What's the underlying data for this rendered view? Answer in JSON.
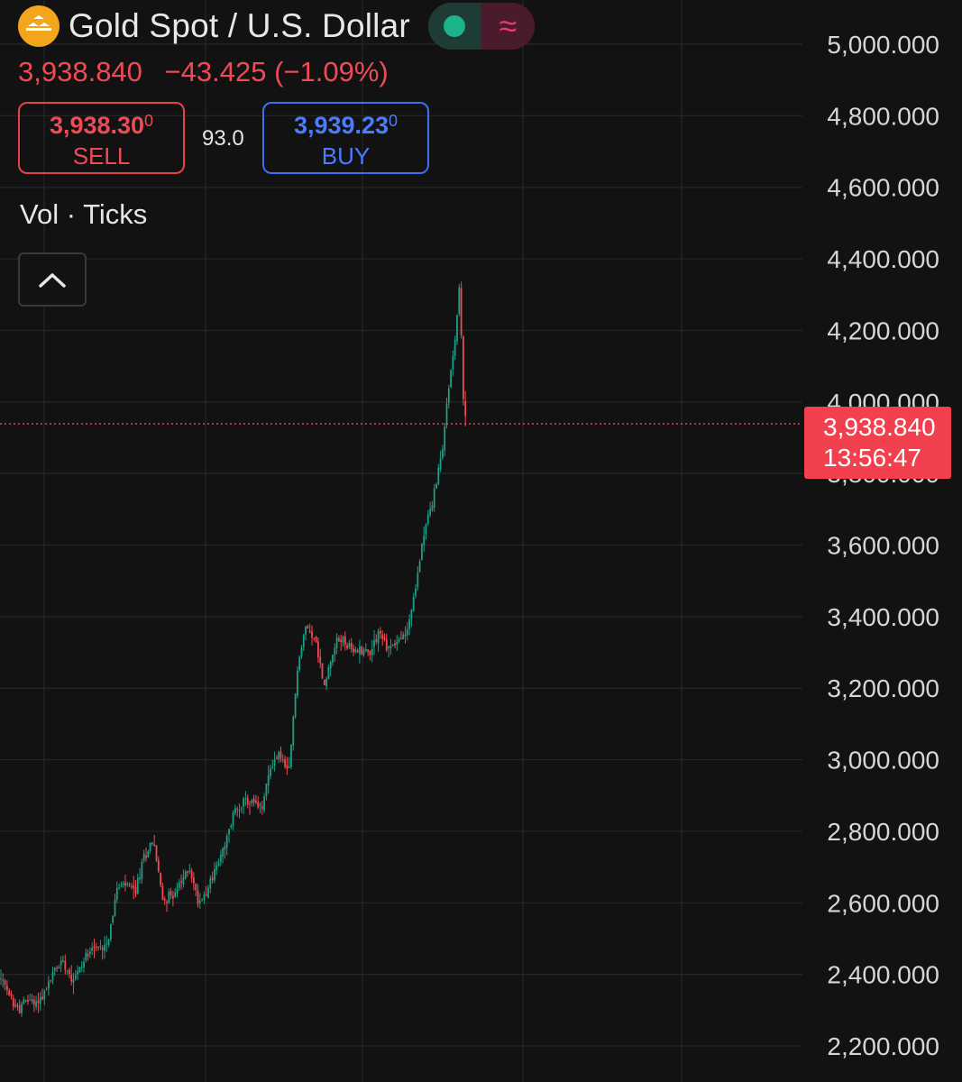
{
  "header": {
    "symbol": "Gold Spot / U.S. Dollar",
    "logo_icon": "gold-bars-icon",
    "toggle_left_icon": "dot-icon",
    "toggle_right_icon": "approx-wave-icon",
    "toggle_right_glyph": "≈"
  },
  "quote": {
    "last": "3,938.840",
    "change": "−43.425",
    "change_pct": "(−1.09%)"
  },
  "trade": {
    "sell_price_main": "3,938.30",
    "sell_price_sup": "0",
    "sell_label": "SELL",
    "spread": "93.0",
    "buy_price_main": "3,939.23",
    "buy_price_sup": "0",
    "buy_label": "BUY"
  },
  "indicator": {
    "label": "Vol · Ticks"
  },
  "price_tag": {
    "price": "3,938.840",
    "countdown": "13:56:47"
  },
  "colors": {
    "background": "#121212",
    "up": "#1f9e86",
    "down": "#ef4a55",
    "sell": "#e7414b",
    "buy": "#3e6ef5",
    "logo": "#f3a51b",
    "price_tag": "#f2404f"
  },
  "chart_data": {
    "type": "candlestick",
    "y_axis": {
      "ticks": [
        "2,200.000",
        "2,400.000",
        "2,600.000",
        "2,800.000",
        "3,000.000",
        "3,200.000",
        "3,400.000",
        "3,600.000",
        "3,800.000",
        "4,000.000",
        "4,200.000",
        "4,400.000",
        "4,600.000",
        "4,800.000",
        "5,000.000"
      ],
      "tick_values": [
        2200,
        2400,
        2600,
        2800,
        3000,
        3200,
        3400,
        3600,
        3800,
        4000,
        4200,
        4400,
        4600,
        4800,
        5000
      ],
      "ylim": [
        2200,
        5000
      ]
    },
    "current_price_line": 3938.84,
    "grid": true,
    "price_path": [
      [
        0,
        2390
      ],
      [
        10,
        2340
      ],
      [
        20,
        2300
      ],
      [
        30,
        2330
      ],
      [
        40,
        2320
      ],
      [
        50,
        2350
      ],
      [
        60,
        2410
      ],
      [
        70,
        2440
      ],
      [
        80,
        2390
      ],
      [
        90,
        2420
      ],
      [
        100,
        2480
      ],
      [
        110,
        2470
      ],
      [
        120,
        2500
      ],
      [
        130,
        2640
      ],
      [
        140,
        2650
      ],
      [
        150,
        2630
      ],
      [
        160,
        2730
      ],
      [
        170,
        2780
      ],
      [
        180,
        2610
      ],
      [
        190,
        2620
      ],
      [
        200,
        2650
      ],
      [
        210,
        2700
      ],
      [
        220,
        2600
      ],
      [
        230,
        2640
      ],
      [
        240,
        2700
      ],
      [
        250,
        2760
      ],
      [
        260,
        2860
      ],
      [
        270,
        2880
      ],
      [
        280,
        2880
      ],
      [
        290,
        2860
      ],
      [
        300,
        2980
      ],
      [
        310,
        3020
      ],
      [
        320,
        2950
      ],
      [
        330,
        3260
      ],
      [
        340,
        3380
      ],
      [
        350,
        3330
      ],
      [
        360,
        3200
      ],
      [
        370,
        3320
      ],
      [
        380,
        3340
      ],
      [
        390,
        3300
      ],
      [
        400,
        3310
      ],
      [
        410,
        3300
      ],
      [
        420,
        3360
      ],
      [
        430,
        3310
      ],
      [
        440,
        3330
      ],
      [
        450,
        3350
      ],
      [
        460,
        3460
      ],
      [
        470,
        3640
      ],
      [
        480,
        3720
      ],
      [
        490,
        3860
      ],
      [
        500,
        4090
      ],
      [
        505,
        4180
      ],
      [
        510,
        4340
      ],
      [
        513,
        4030
      ],
      [
        517,
        3940
      ]
    ]
  }
}
